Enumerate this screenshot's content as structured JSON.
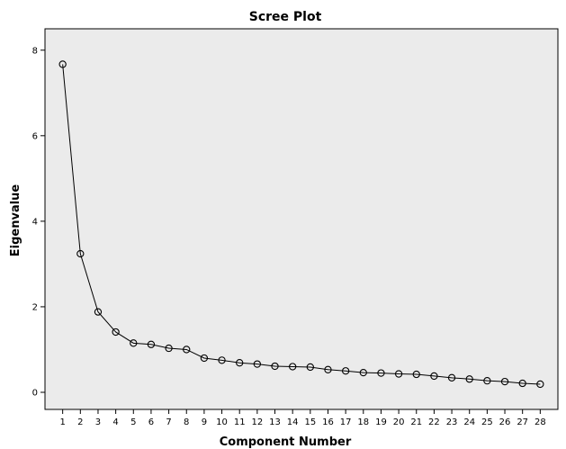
{
  "chart_data": {
    "type": "line",
    "title": "Scree Plot",
    "xlabel": "Component Number",
    "ylabel": "Eigenvalue",
    "x": [
      1,
      2,
      3,
      4,
      5,
      6,
      7,
      8,
      9,
      10,
      11,
      12,
      13,
      14,
      15,
      16,
      17,
      18,
      19,
      20,
      21,
      22,
      23,
      24,
      25,
      26,
      27,
      28
    ],
    "xtick_labels": [
      "1",
      "2",
      "3",
      "4",
      "5",
      "6",
      "7",
      "8",
      "9",
      "10",
      "11",
      "12",
      "13",
      "14",
      "15",
      "16",
      "17",
      "18",
      "19",
      "20",
      "21",
      "22",
      "23",
      "24",
      "25",
      "26",
      "27",
      "28"
    ],
    "values": [
      7.67,
      3.24,
      1.88,
      1.41,
      1.15,
      1.12,
      1.03,
      1.0,
      0.8,
      0.75,
      0.69,
      0.66,
      0.61,
      0.6,
      0.59,
      0.53,
      0.5,
      0.46,
      0.45,
      0.43,
      0.42,
      0.38,
      0.34,
      0.31,
      0.27,
      0.25,
      0.21,
      0.19
    ],
    "xlim": [
      0,
      29
    ],
    "ylim": [
      -0.4,
      8.5
    ],
    "yticks": [
      0,
      2,
      4,
      6,
      8
    ],
    "ytick_labels": [
      "0",
      "2",
      "4",
      "6",
      "8"
    ],
    "grid": false,
    "marker": "open-circle",
    "colors": {
      "plot_background": "#ebebeb",
      "line": "#000000",
      "axis": "#000000"
    }
  }
}
